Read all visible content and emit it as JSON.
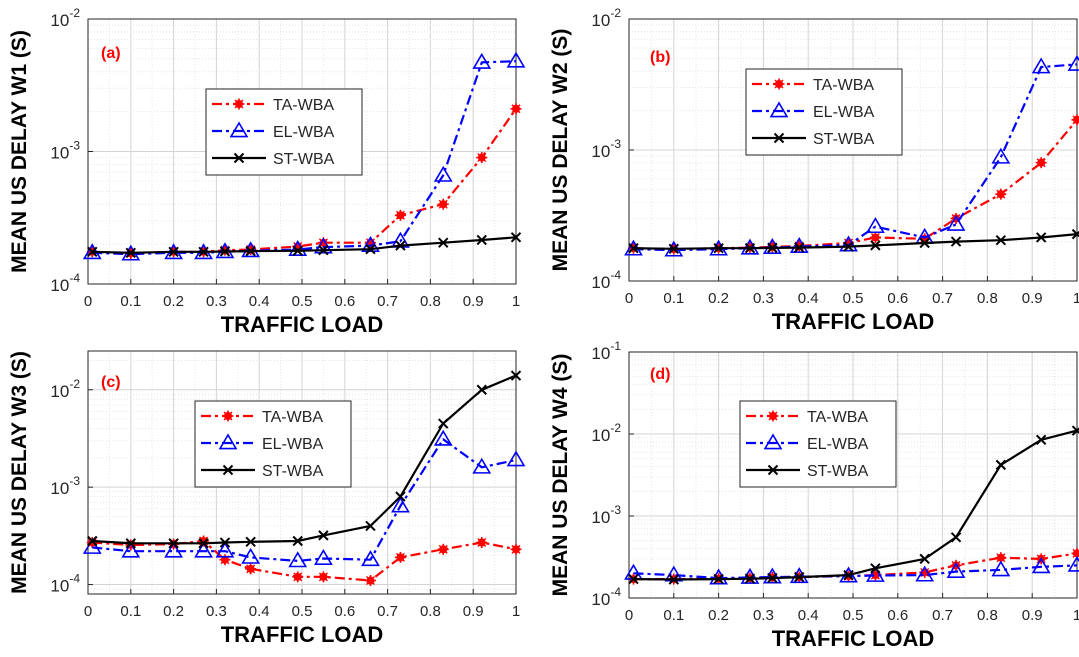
{
  "chart_data": [
    {
      "type": "line",
      "panel_label": "(a)",
      "xlabel": "TRAFFIC LOAD",
      "ylabel": "MEAN US DELAY W1 (S)",
      "yscale": "log",
      "xlim": [
        0,
        1
      ],
      "ylim": [
        0.0001,
        0.01
      ],
      "grid": true,
      "legend_position": "upper-center",
      "x": [
        0.01,
        0.1,
        0.2,
        0.27,
        0.32,
        0.38,
        0.49,
        0.55,
        0.66,
        0.73,
        0.83,
        0.92,
        1.0
      ],
      "series": [
        {
          "name": "TA-WBA",
          "color": "#ff0000",
          "marker": "*",
          "values": [
            0.000175,
            0.00017,
            0.000175,
            0.000175,
            0.00018,
            0.000182,
            0.000192,
            0.000205,
            0.000205,
            0.00033,
            0.0004,
            0.0009,
            0.0021
          ]
        },
        {
          "name": "EL-WBA",
          "color": "#0000ff",
          "marker": "triangle",
          "values": [
            0.000172,
            0.000168,
            0.000172,
            0.000172,
            0.000175,
            0.000178,
            0.000182,
            0.00019,
            0.000195,
            0.00021,
            0.00066,
            0.0047,
            0.0048
          ]
        },
        {
          "name": "ST-WBA",
          "color": "#000000",
          "marker": "x",
          "values": [
            0.000175,
            0.000172,
            0.000175,
            0.000175,
            0.000176,
            0.000177,
            0.000178,
            0.00018,
            0.000183,
            0.000195,
            0.000205,
            0.000215,
            0.000225
          ]
        }
      ]
    },
    {
      "type": "line",
      "panel_label": "(b)",
      "xlabel": "TRAFFIC LOAD",
      "ylabel": "MEAN US DELAY W2 (S)",
      "yscale": "log",
      "xlim": [
        0,
        1
      ],
      "ylim": [
        0.0001,
        0.01
      ],
      "grid": true,
      "legend_position": "upper-center",
      "x": [
        0.01,
        0.1,
        0.2,
        0.27,
        0.32,
        0.38,
        0.49,
        0.55,
        0.66,
        0.73,
        0.83,
        0.92,
        1.0
      ],
      "series": [
        {
          "name": "TA-WBA",
          "color": "#ff0000",
          "marker": "*",
          "values": [
            0.000178,
            0.000175,
            0.000178,
            0.00018,
            0.000182,
            0.000185,
            0.000195,
            0.000215,
            0.00021,
            0.0003,
            0.00046,
            0.0008,
            0.0017
          ]
        },
        {
          "name": "EL-WBA",
          "color": "#0000ff",
          "marker": "triangle",
          "values": [
            0.000175,
            0.000172,
            0.000175,
            0.000178,
            0.00018,
            0.000183,
            0.000188,
            0.00026,
            0.000215,
            0.00027,
            0.00088,
            0.0043,
            0.0045
          ]
        },
        {
          "name": "ST-WBA",
          "color": "#000000",
          "marker": "x",
          "values": [
            0.000178,
            0.000176,
            0.000178,
            0.000178,
            0.000179,
            0.00018,
            0.000183,
            0.000187,
            0.000195,
            0.0002,
            0.000205,
            0.000215,
            0.000228
          ]
        }
      ]
    },
    {
      "type": "line",
      "panel_label": "(c)",
      "xlabel": "TRAFFIC LOAD",
      "ylabel": "MEAN US DELAY W3 (S)",
      "yscale": "log",
      "xlim": [
        0,
        1
      ],
      "ylim": [
        8e-05,
        0.025
      ],
      "grid": true,
      "legend_position": "upper-center",
      "x": [
        0.01,
        0.1,
        0.2,
        0.27,
        0.32,
        0.38,
        0.49,
        0.55,
        0.66,
        0.73,
        0.83,
        0.92,
        1.0
      ],
      "series": [
        {
          "name": "TA-WBA",
          "color": "#ff0000",
          "marker": "*",
          "values": [
            0.00027,
            0.000255,
            0.00026,
            0.00028,
            0.00018,
            0.000145,
            0.00012,
            0.00012,
            0.00011,
            0.00019,
            0.00023,
            0.00027,
            0.00023
          ]
        },
        {
          "name": "EL-WBA",
          "color": "#0000ff",
          "marker": "triangle",
          "values": [
            0.00024,
            0.00022,
            0.00022,
            0.00022,
            0.00022,
            0.00019,
            0.000175,
            0.000185,
            0.00018,
            0.00064,
            0.0031,
            0.0016,
            0.0019
          ]
        },
        {
          "name": "ST-WBA",
          "color": "#000000",
          "marker": "x",
          "values": [
            0.00028,
            0.000265,
            0.000265,
            0.000265,
            0.00027,
            0.000275,
            0.00028,
            0.00032,
            0.0004,
            0.0008,
            0.0045,
            0.01,
            0.014
          ]
        }
      ]
    },
    {
      "type": "line",
      "panel_label": "(d)",
      "xlabel": "TRAFFIC LOAD",
      "ylabel": "MEAN US DELAY W4 (S)",
      "yscale": "log",
      "xlim": [
        0,
        1
      ],
      "ylim": [
        0.0001,
        0.1
      ],
      "grid": true,
      "legend_position": "upper-center",
      "x": [
        0.01,
        0.1,
        0.2,
        0.27,
        0.32,
        0.38,
        0.49,
        0.55,
        0.66,
        0.73,
        0.83,
        0.92,
        1.0
      ],
      "series": [
        {
          "name": "TA-WBA",
          "color": "#ff0000",
          "marker": "*",
          "values": [
            0.00017,
            0.00017,
            0.000172,
            0.000175,
            0.000178,
            0.00018,
            0.000185,
            0.00019,
            0.000205,
            0.00025,
            0.00031,
            0.0003,
            0.00035
          ]
        },
        {
          "name": "EL-WBA",
          "color": "#0000ff",
          "marker": "triangle",
          "values": [
            0.0002,
            0.00019,
            0.000175,
            0.000178,
            0.00018,
            0.000182,
            0.000185,
            0.000188,
            0.00019,
            0.00021,
            0.00022,
            0.00024,
            0.00025
          ]
        },
        {
          "name": "ST-WBA",
          "color": "#000000",
          "marker": "x",
          "values": [
            0.00017,
            0.000168,
            0.00017,
            0.000172,
            0.000175,
            0.00018,
            0.00019,
            0.00023,
            0.0003,
            0.00055,
            0.0042,
            0.0085,
            0.011
          ]
        }
      ]
    }
  ],
  "panels": [
    {
      "x_ticks": [
        "0",
        "0.1",
        "0.2",
        "0.3",
        "0.4",
        "0.5",
        "0.6",
        "0.7",
        "0.8",
        "0.9",
        "1"
      ],
      "y_ticks": [
        {
          "value": 0.0001,
          "base": "10",
          "exp": "-4"
        },
        {
          "value": 0.001,
          "base": "10",
          "exp": "-3"
        },
        {
          "value": 0.01,
          "base": "10",
          "exp": "-2"
        }
      ]
    },
    {
      "x_ticks": [
        "0",
        "0.1",
        "0.2",
        "0.3",
        "0.4",
        "0.5",
        "0.6",
        "0.7",
        "0.8",
        "0.9",
        "1"
      ],
      "y_ticks": [
        {
          "value": 0.0001,
          "base": "10",
          "exp": "-4"
        },
        {
          "value": 0.001,
          "base": "10",
          "exp": "-3"
        },
        {
          "value": 0.01,
          "base": "10",
          "exp": "-2"
        }
      ]
    },
    {
      "x_ticks": [
        "0",
        "0.1",
        "0.2",
        "0.3",
        "0.4",
        "0.5",
        "0.6",
        "0.7",
        "0.8",
        "0.9",
        "1"
      ],
      "y_ticks": [
        {
          "value": 0.0001,
          "base": "10",
          "exp": "-4"
        },
        {
          "value": 0.001,
          "base": "10",
          "exp": "-3"
        },
        {
          "value": 0.01,
          "base": "10",
          "exp": "-2"
        }
      ]
    },
    {
      "x_ticks": [
        "0",
        "0.1",
        "0.2",
        "0.3",
        "0.4",
        "0.5",
        "0.6",
        "0.7",
        "0.8",
        "0.9",
        "1"
      ],
      "y_ticks": [
        {
          "value": 0.0001,
          "base": "10",
          "exp": "-4"
        },
        {
          "value": 0.001,
          "base": "10",
          "exp": "-3"
        },
        {
          "value": 0.01,
          "base": "10",
          "exp": "-2"
        },
        {
          "value": 0.1,
          "base": "10",
          "exp": "-1"
        }
      ]
    }
  ]
}
